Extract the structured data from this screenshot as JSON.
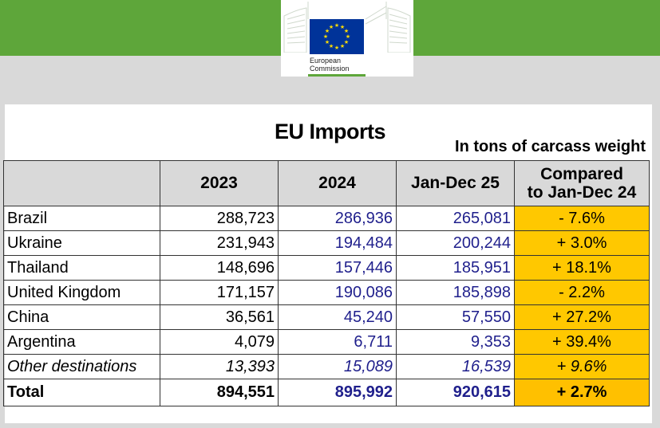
{
  "header": {
    "logo": {
      "line1": "European",
      "line2": "Commission",
      "flag_color": "#003399"
    },
    "banner_color": "#5ea63a"
  },
  "report": {
    "title": "EU Imports",
    "subtitle": "In tons of carcass weight",
    "columns": [
      "",
      "2023",
      "2024",
      "Jan-Dec 25",
      "Compared",
      "to Jan-Dec 24"
    ],
    "rows": [
      {
        "country": "Brazil",
        "y2023": "288,723",
        "y2024": "286,936",
        "y2025": "265,081",
        "change": "- 7.6%"
      },
      {
        "country": "Ukraine",
        "y2023": "231,943",
        "y2024": "194,484",
        "y2025": "200,244",
        "change": "+ 3.0%"
      },
      {
        "country": "Thailand",
        "y2023": "148,696",
        "y2024": "157,446",
        "y2025": "185,951",
        "change": "+ 18.1%"
      },
      {
        "country": "United Kingdom",
        "y2023": "171,157",
        "y2024": "190,086",
        "y2025": "185,898",
        "change": "- 2.2%"
      },
      {
        "country": "China",
        "y2023": "36,561",
        "y2024": "45,240",
        "y2025": "57,550",
        "change": "+ 27.2%"
      },
      {
        "country": "Argentina",
        "y2023": "4,079",
        "y2024": "6,711",
        "y2025": "9,353",
        "change": "+ 39.4%"
      },
      {
        "country": "Other destinations",
        "y2023": "13,393",
        "y2024": "15,089",
        "y2025": "16,539",
        "change": "+ 9.6%"
      }
    ],
    "total": {
      "label": "Total",
      "y2023": "894,551",
      "y2024": "895,992",
      "y2025": "920,615",
      "change": "+ 2.7%"
    },
    "highlight_color": "#ffc800",
    "header_fill": "#d9d9d9",
    "value_color": "#1f1f8c"
  }
}
